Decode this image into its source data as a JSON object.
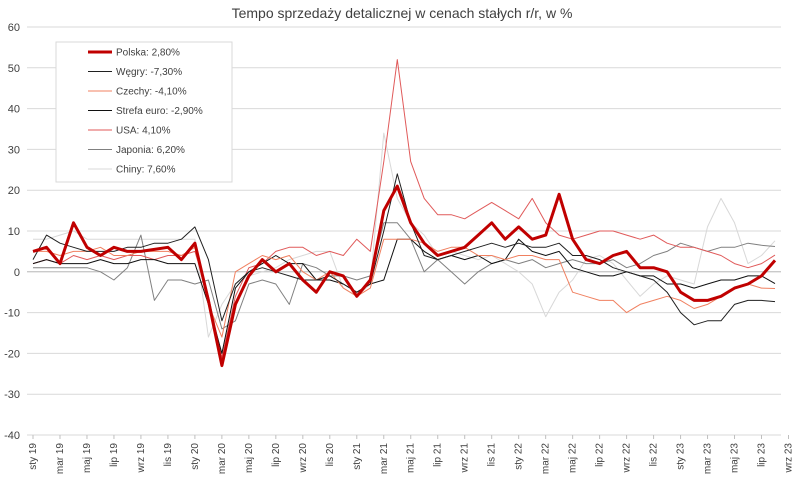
{
  "chart_data": {
    "type": "line",
    "title": "Tempo sprzedaży detalicznej w cenach stałych r/r, w %",
    "xlabel": "",
    "ylabel": "",
    "ylim": [
      -40,
      60
    ],
    "yticks": [
      -40,
      -30,
      -20,
      -10,
      0,
      10,
      20,
      30,
      40,
      50,
      60
    ],
    "grid": "horizontal",
    "legend_position": "top-left",
    "x_tick_labels": [
      "sty 19",
      "mar 19",
      "maj 19",
      "lip 19",
      "wrz 19",
      "lis 19",
      "sty 20",
      "mar 20",
      "maj 20",
      "lip 20",
      "wrz 20",
      "lis 20",
      "sty 21",
      "mar 21",
      "maj 21",
      "lip 21",
      "wrz 21",
      "lis 21",
      "sty 22",
      "mar 22",
      "maj 22",
      "lip 22",
      "wrz 22",
      "lis 22",
      "sty 23",
      "mar 23",
      "maj 23",
      "lip 23",
      "wrz 23",
      "lis 23"
    ],
    "x_tick_every": 2,
    "series": [
      {
        "name": "Polska: 2,80%",
        "color": "#c00000",
        "width": 3,
        "values": [
          5,
          6,
          2,
          12,
          6,
          4,
          6,
          5,
          5,
          5.5,
          6,
          3,
          7,
          -7,
          -23,
          -8,
          -1,
          3,
          0,
          2,
          -2,
          -5,
          0,
          -1,
          -6,
          -2,
          15,
          21,
          12,
          7,
          4,
          5,
          6,
          9,
          12,
          8,
          11,
          8,
          9,
          19,
          8,
          3,
          2,
          4,
          5,
          1,
          1,
          0,
          -5,
          -7,
          -7,
          -6,
          -4,
          -3,
          -1,
          2.8
        ]
      },
      {
        "name": "Węgry: -7,30%",
        "color": "#202020",
        "width": 1,
        "values": [
          3,
          9,
          7,
          6,
          5,
          5,
          5,
          6,
          6,
          7,
          7,
          8,
          11,
          3,
          -12,
          -3,
          0,
          1,
          0,
          -1,
          -2,
          -2,
          -1,
          -3,
          -5,
          -3,
          10,
          24,
          12,
          4,
          3,
          4,
          5,
          6,
          7,
          6,
          7,
          6,
          6,
          7,
          4,
          4,
          3,
          1,
          0,
          -1,
          -2,
          -5,
          -10,
          -13,
          -12,
          -12,
          -8,
          -7,
          -7,
          -7.3
        ]
      },
      {
        "name": "Czechy: -4,10%",
        "color": "#f08060",
        "width": 1,
        "values": [
          5,
          5,
          4,
          5,
          5,
          6,
          4,
          4,
          5,
          5,
          5,
          4,
          6,
          -8,
          -16,
          0,
          2,
          4,
          3,
          4,
          0,
          -2,
          0,
          -4,
          -6,
          -4,
          8,
          8,
          8,
          7,
          5,
          6,
          6,
          4,
          4,
          3,
          4,
          4,
          3,
          3,
          -5,
          -6,
          -7,
          -7,
          -10,
          -8,
          -7,
          -6,
          -7,
          -9,
          -8,
          -6,
          -4,
          -3,
          -4,
          -4.1
        ]
      },
      {
        "name": "Strefa euro: -2,90%",
        "color": "#101010",
        "width": 1,
        "values": [
          2,
          3,
          2,
          2,
          2,
          3,
          2,
          2,
          3,
          3,
          2,
          2,
          2,
          -8,
          -20,
          -4,
          0,
          2,
          4,
          2,
          2,
          -2,
          -2,
          -3,
          -5,
          -3,
          -2,
          8,
          8,
          5,
          3,
          4,
          3,
          4,
          2,
          3,
          8,
          5,
          4,
          5,
          1,
          0,
          -1,
          -1,
          0,
          -1,
          -1,
          -3,
          -3,
          -4,
          -3,
          -2,
          -2,
          -1,
          -1,
          -2.9
        ]
      },
      {
        "name": "USA: 4,10%",
        "color": "#e05a5a",
        "width": 1,
        "values": [
          2,
          3,
          2,
          4,
          3,
          4,
          3,
          4,
          4,
          3,
          4,
          4,
          5,
          -6,
          -21,
          -6,
          1,
          2,
          5,
          6,
          6,
          4,
          5,
          4,
          8,
          5,
          27,
          52,
          27,
          18,
          14,
          14,
          13,
          15,
          17,
          15,
          13,
          18,
          12,
          9,
          8,
          9,
          10,
          10,
          9,
          8,
          9,
          7,
          6,
          6,
          5,
          4,
          2,
          1,
          2,
          4.1
        ]
      },
      {
        "name": "Japonia: 6,20%",
        "color": "#808080",
        "width": 1,
        "values": [
          1,
          1,
          1,
          1,
          1,
          0,
          -2,
          1,
          9,
          -7,
          -2,
          -2,
          -3,
          -2,
          -14,
          -12,
          -3,
          -2,
          -3,
          -8,
          2,
          1,
          -1,
          -1,
          -2,
          -1,
          12,
          12,
          8,
          0,
          3,
          0,
          -3,
          0,
          2,
          3,
          2,
          3,
          1,
          2,
          3,
          2,
          2,
          3,
          1,
          2,
          4,
          5,
          7,
          6,
          5,
          6,
          6,
          7,
          6.5,
          6.2
        ]
      },
      {
        "name": "Chiny: 7,60%",
        "color": "#d8d8d8",
        "width": 1,
        "values": [
          8,
          8,
          9,
          10,
          8,
          8,
          8,
          8,
          8,
          8,
          8,
          8,
          8,
          -16,
          -8,
          -3,
          -1,
          0,
          1,
          3,
          4,
          5,
          5,
          -4,
          -6,
          -3,
          34,
          18,
          12,
          9,
          4,
          5,
          4,
          3,
          4,
          2,
          0,
          -3,
          -11,
          -5,
          -2,
          3,
          4,
          2,
          -2,
          -6,
          -3,
          -1,
          -2,
          -3,
          11,
          18,
          12,
          2,
          4,
          7.6
        ]
      }
    ]
  }
}
